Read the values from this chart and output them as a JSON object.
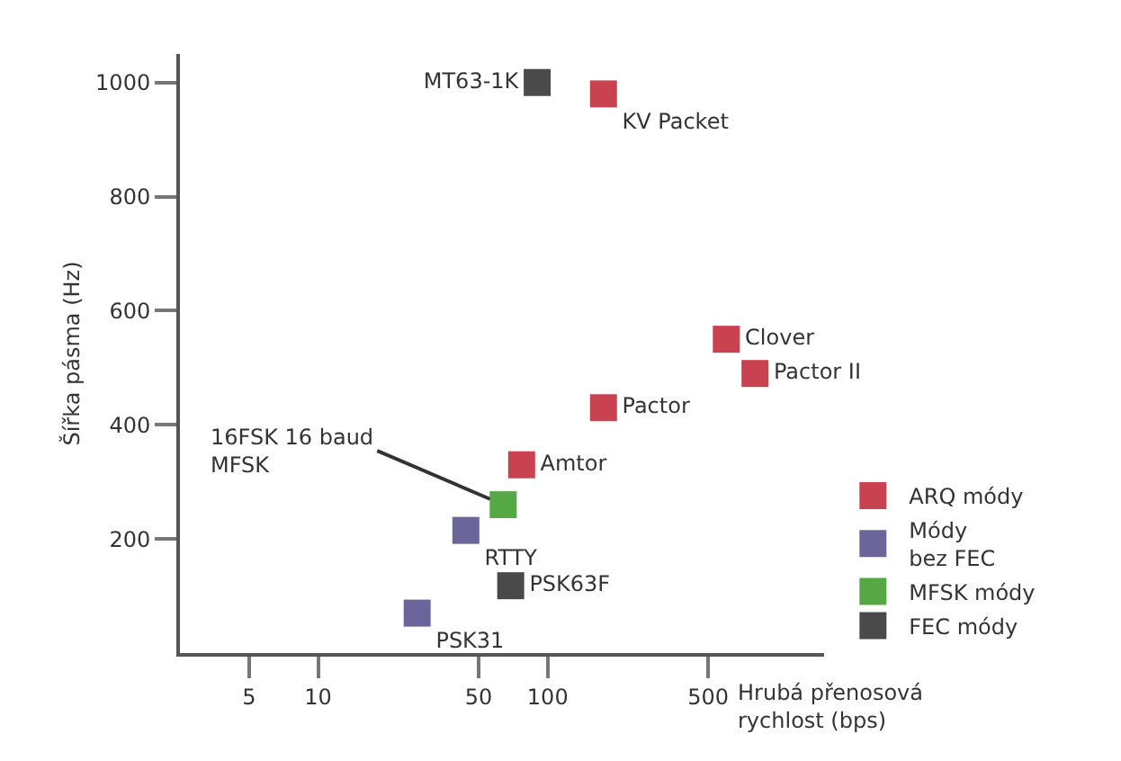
{
  "chart_data": {
    "type": "scatter",
    "xlabel": "Hrubá přenosová\nrychlost (bps)",
    "ylabel": "Šířka pásma (Hz)",
    "log": "x",
    "xlim": [
      2.5,
      1600
    ],
    "xticks": [
      5,
      10,
      50,
      100,
      500
    ],
    "ylim": [
      0,
      1050
    ],
    "yticks": [
      200,
      400,
      600,
      800,
      1000
    ],
    "legend": "bottom right",
    "marker": "square",
    "series": [
      {
        "name": "ARQ módy",
        "color": "#c8434f",
        "x": [
          175,
          600,
          800,
          175,
          77
        ],
        "values": [
          980,
          550,
          490,
          430,
          330
        ],
        "value_labels": [
          "KV Packet",
          "Clover",
          "Pactor II",
          "Pactor",
          "Amtor"
        ]
      },
      {
        "name": "Módy\nbez FEC",
        "color": "#6b6699",
        "x": [
          44,
          27
        ],
        "values": [
          215,
          70
        ],
        "value_labels": [
          "RTTY",
          "PSK31"
        ]
      },
      {
        "name": "MFSK módy",
        "color": "#55a843",
        "x": [
          64
        ],
        "values": [
          260
        ],
        "value_labels": [
          "16FSK 16 baud\nMFSK"
        ]
      },
      {
        "name": "FEC módy",
        "color": "#4a4a4a",
        "x": [
          90,
          69
        ],
        "values": [
          1000,
          118
        ],
        "value_labels": [
          "MT63-1K",
          "PSK63F"
        ]
      }
    ]
  }
}
